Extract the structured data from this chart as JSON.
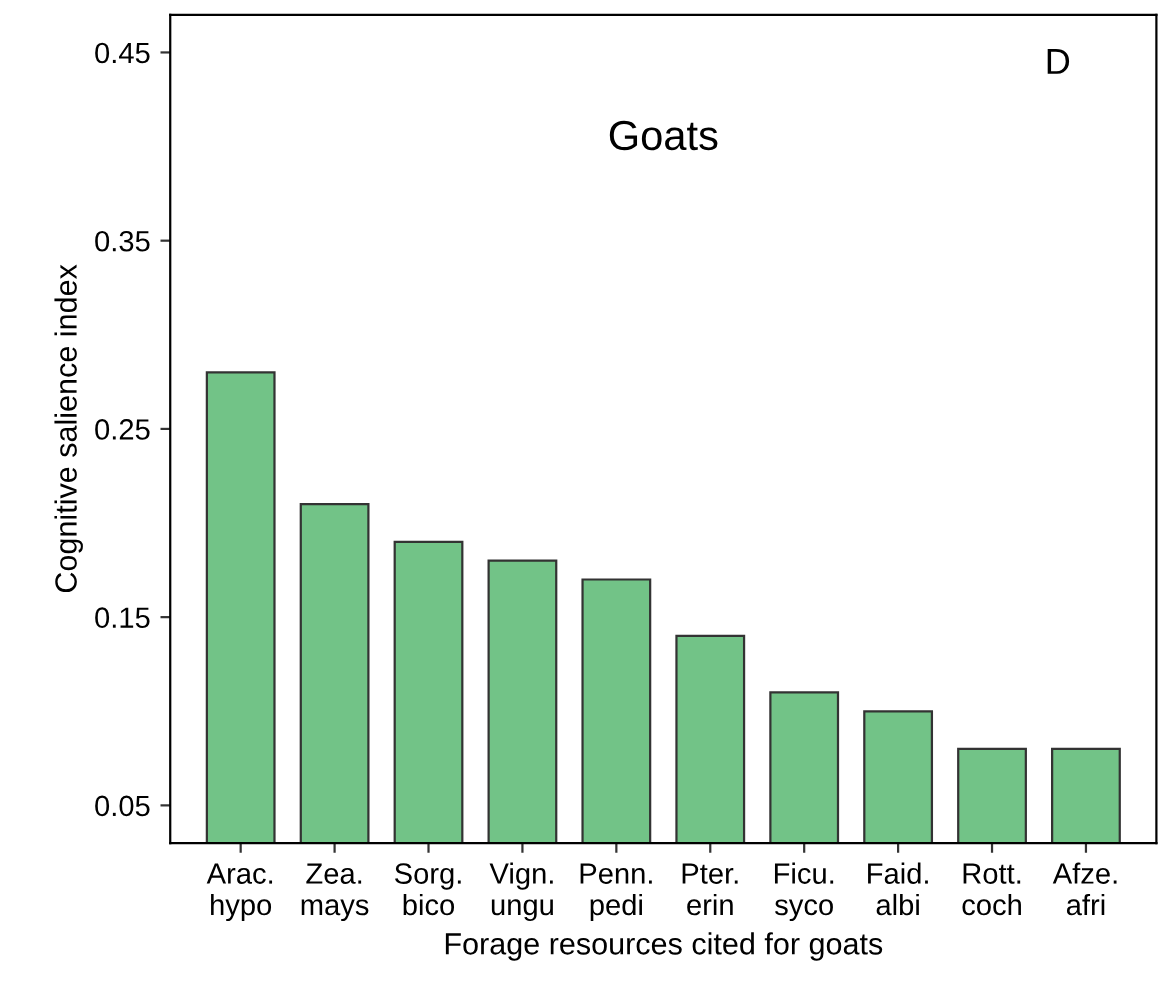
{
  "chart_data": {
    "type": "bar",
    "title": "Goats",
    "xlabel": "Forage resources cited for goats",
    "ylabel": "Cognitive salience index",
    "annotations": [
      "D"
    ],
    "categories": [
      "Arac.\nhypo",
      "Zea.\nmays",
      "Sorg.\nbico",
      "Vign.\nungu",
      "Penn.\npedi",
      "Pter.\nerin",
      "Ficu.\nsyco",
      "Faid.\nalbi",
      "Rott.\ncoch",
      "Afze.\nafri"
    ],
    "values": [
      0.28,
      0.21,
      0.19,
      0.18,
      0.17,
      0.14,
      0.11,
      0.1,
      0.08,
      0.08
    ],
    "color": "#72c387",
    "ylim": [
      0.03,
      0.47
    ],
    "yticks": [
      0.05,
      0.15,
      0.25,
      0.35,
      0.45
    ],
    "grid": false,
    "legend": false
  }
}
